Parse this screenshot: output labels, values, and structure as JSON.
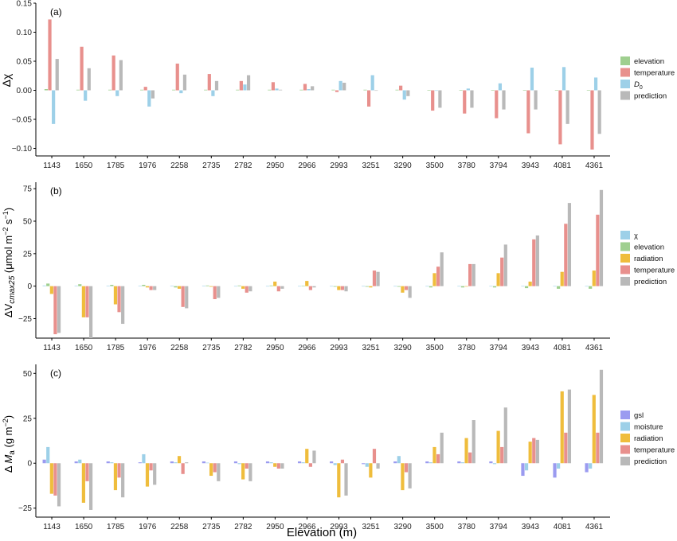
{
  "xlabel": "Elevation (m)",
  "categories": [
    "1143",
    "1650",
    "1785",
    "1976",
    "2258",
    "2735",
    "2782",
    "2950",
    "2966",
    "2993",
    "3251",
    "3290",
    "3500",
    "3780",
    "3794",
    "3943",
    "4081",
    "4361"
  ],
  "chart_data": [
    {
      "type": "bar",
      "panel_label": "(a)",
      "ylabel": "Δχ",
      "ylim": [
        -0.113,
        0.15
      ],
      "yticks": [
        -0.1,
        -0.05,
        0.0,
        0.05,
        0.1,
        0.15
      ],
      "ytick_labels": [
        "−0.10",
        "−0.05",
        "0.00",
        "0.05",
        "0.10",
        "0.15"
      ],
      "series": [
        {
          "name": "elevation",
          "color": "#9fcf8f",
          "values": [
            0.002,
            0.001,
            0.001,
            0.001,
            0.001,
            0.001,
            0.001,
            0.001,
            0.001,
            0.001,
            0.001,
            0.001,
            0.0005,
            0.0005,
            0.0005,
            0.0005,
            0.0005,
            0.0005
          ]
        },
        {
          "name": "temperature",
          "color": "#e8908d",
          "values": [
            0.122,
            0.075,
            0.06,
            0.006,
            0.046,
            0.028,
            0.016,
            0.014,
            0.011,
            -0.003,
            -0.028,
            0.008,
            -0.035,
            -0.04,
            -0.048,
            -0.074,
            -0.093,
            -0.102
          ]
        },
        {
          "name": "D0",
          "color": "#9dd0e8",
          "values": [
            -0.058,
            -0.018,
            -0.01,
            -0.028,
            -0.005,
            -0.01,
            0.01,
            0.003,
            0.002,
            0.016,
            0.026,
            -0.016,
            0.0,
            0.003,
            0.012,
            0.039,
            0.04,
            0.022
          ]
        },
        {
          "name": "prediction",
          "color": "#b9b9b9",
          "values": [
            0.054,
            0.038,
            0.052,
            -0.014,
            0.027,
            0.016,
            0.026,
            0.001,
            0.007,
            0.013,
            0.0,
            -0.01,
            -0.03,
            -0.03,
            -0.033,
            -0.033,
            -0.058,
            -0.075
          ]
        }
      ],
      "legend": [
        {
          "label": "elevation",
          "color": "#9fcf8f"
        },
        {
          "label": "temperature",
          "color": "#e8908d"
        },
        {
          "label": "D0",
          "sub": "0",
          "main": "D",
          "color": "#9dd0e8"
        },
        {
          "label": "prediction",
          "color": "#b9b9b9"
        }
      ]
    },
    {
      "type": "bar",
      "panel_label": "(b)",
      "ylabel": "ΔVcmax25 (μmol m−2 s−1)",
      "ylim": [
        -40,
        80
      ],
      "yticks": [
        -25,
        0,
        25,
        50,
        75
      ],
      "ytick_labels": [
        "−25",
        "0",
        "25",
        "50",
        "75"
      ],
      "series": [
        {
          "name": "χ",
          "color": "#9dd0e8",
          "values": [
            0.5,
            0.3,
            0.3,
            0.2,
            0.2,
            0.2,
            0.1,
            0.1,
            0.1,
            0.1,
            0.1,
            0.1,
            0.1,
            0.1,
            0.1,
            0.1,
            0.1,
            0.1
          ]
        },
        {
          "name": "elevation",
          "color": "#9fcf8f",
          "values": [
            2,
            1.5,
            1,
            1,
            -1,
            0.5,
            0.5,
            0.5,
            0.3,
            -0.5,
            -0.5,
            -0.5,
            -1,
            -1,
            -1,
            -1.5,
            -2,
            -2
          ]
        },
        {
          "name": "radiation",
          "color": "#efbd3c",
          "values": [
            -6,
            -24,
            -14,
            -1,
            -2,
            -0.5,
            -2,
            3.5,
            4,
            -3,
            -1,
            -5,
            10,
            0,
            10,
            3.5,
            11,
            12
          ]
        },
        {
          "name": "temperature",
          "color": "#e8908d",
          "values": [
            -37,
            -24,
            -20,
            -3,
            -16,
            -10,
            -5,
            -4,
            -3,
            -3,
            12,
            -3,
            15,
            17,
            22,
            36,
            48,
            55
          ]
        },
        {
          "name": "prediction",
          "color": "#b9b9b9",
          "values": [
            -36,
            -40,
            -29,
            -3,
            -17,
            -9,
            -4,
            -2,
            -1,
            -4,
            11,
            -9,
            26,
            17,
            32,
            39,
            64,
            74
          ]
        }
      ],
      "legend": [
        {
          "label": "χ",
          "color": "#9dd0e8"
        },
        {
          "label": "elevation",
          "color": "#9fcf8f"
        },
        {
          "label": "radiation",
          "color": "#efbd3c"
        },
        {
          "label": "temperature",
          "color": "#e8908d"
        },
        {
          "label": "prediction",
          "color": "#b9b9b9"
        }
      ]
    },
    {
      "type": "bar",
      "panel_label": "(c)",
      "ylabel": "ΔMa (g m−2)",
      "ylim": [
        -30,
        55
      ],
      "yticks": [
        -25,
        0,
        25,
        50
      ],
      "ytick_labels": [
        "−25",
        "0",
        "25",
        "50"
      ],
      "series": [
        {
          "name": "gsl",
          "color": "#9b9bf0",
          "values": [
            2,
            1,
            1,
            0.5,
            1,
            1,
            1,
            1,
            1,
            1,
            -0.5,
            1,
            1,
            1,
            1,
            -7,
            -8,
            -5
          ]
        },
        {
          "name": "moisture",
          "color": "#9dd0e8",
          "values": [
            9,
            2,
            0.5,
            5,
            0.5,
            0.3,
            -0.5,
            0.5,
            0.5,
            -1,
            -2,
            4,
            0.5,
            0.5,
            -0.5,
            -4,
            -3,
            -3
          ]
        },
        {
          "name": "radiation",
          "color": "#efbd3c",
          "values": [
            -17,
            -22,
            -15,
            -13,
            4,
            -7,
            -9,
            -2,
            8,
            -19,
            -8,
            -15,
            9,
            14,
            18,
            12,
            40,
            38
          ]
        },
        {
          "name": "temperature",
          "color": "#e8908d",
          "values": [
            -18,
            -10,
            -8,
            -4,
            -6,
            -5,
            -3,
            -3,
            -2,
            2,
            8,
            -5,
            5,
            6,
            9,
            14,
            17,
            17
          ]
        },
        {
          "name": "prediction",
          "color": "#b9b9b9",
          "values": [
            -24,
            -26,
            -19,
            -12,
            0.5,
            -10,
            -10,
            -3,
            7,
            -18,
            -3,
            -14,
            17,
            24,
            31,
            13,
            41,
            52
          ]
        }
      ],
      "legend": [
        {
          "label": "gsl",
          "color": "#9b9bf0"
        },
        {
          "label": "moisture",
          "color": "#9dd0e8"
        },
        {
          "label": "radiation",
          "color": "#efbd3c"
        },
        {
          "label": "temperature",
          "color": "#e8908d"
        },
        {
          "label": "prediction",
          "color": "#b9b9b9"
        }
      ]
    }
  ]
}
